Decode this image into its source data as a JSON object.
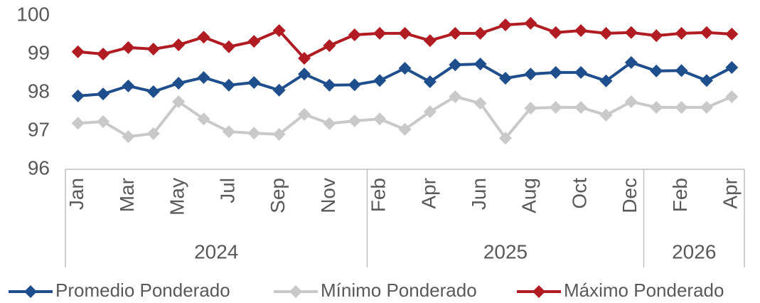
{
  "chart_data": {
    "type": "line",
    "categories": [
      "Jan",
      null,
      "Mar",
      null,
      "May",
      null,
      "Jul",
      null,
      "Sep",
      null,
      "Nov",
      null,
      "Feb",
      null,
      "Apr",
      null,
      "Jun",
      null,
      "Aug",
      null,
      "Oct",
      null,
      "Dec",
      null,
      "Feb",
      null,
      "Apr"
    ],
    "x_groups": [
      "2024",
      "2024",
      "2024",
      "2024",
      "2024",
      "2024",
      "2024",
      "2024",
      "2024",
      "2024",
      "2024",
      "2024",
      "2025",
      "2025",
      "2025",
      "2025",
      "2025",
      "2025",
      "2025",
      "2025",
      "2025",
      "2025",
      "2025",
      "2026",
      "2026",
      "2026",
      "2026"
    ],
    "series": [
      {
        "name": "Promedio Ponderado",
        "color": "#1f4e8c",
        "values": [
          97.91,
          97.96,
          98.17,
          98.02,
          98.24,
          98.39,
          98.19,
          98.26,
          98.06,
          98.48,
          98.19,
          98.2,
          98.31,
          98.63,
          98.28,
          98.72,
          98.74,
          98.37,
          98.48,
          98.52,
          98.52,
          98.3,
          98.78,
          98.56,
          98.57,
          98.31,
          98.65
        ]
      },
      {
        "name": "Mínimo Ponderado",
        "color": "#c9c9c9",
        "values": [
          97.2,
          97.24,
          96.85,
          96.93,
          97.76,
          97.31,
          96.98,
          96.94,
          96.91,
          97.43,
          97.19,
          97.26,
          97.31,
          97.04,
          97.5,
          97.89,
          97.72,
          96.81,
          97.59,
          97.61,
          97.61,
          97.41,
          97.76,
          97.61,
          97.61,
          97.61,
          97.89
        ]
      },
      {
        "name": "Máximo Ponderado",
        "color": "#b01c22",
        "values": [
          99.06,
          99.0,
          99.17,
          99.13,
          99.24,
          99.44,
          99.19,
          99.33,
          99.61,
          98.89,
          99.22,
          99.5,
          99.54,
          99.54,
          99.35,
          99.54,
          99.54,
          99.76,
          99.8,
          99.56,
          99.61,
          99.54,
          99.56,
          99.48,
          99.54,
          99.56,
          99.52
        ]
      }
    ],
    "ylim": [
      96,
      100
    ],
    "yticks": [
      96,
      97,
      98,
      99,
      100
    ],
    "grid": false,
    "legend": "bottom"
  }
}
